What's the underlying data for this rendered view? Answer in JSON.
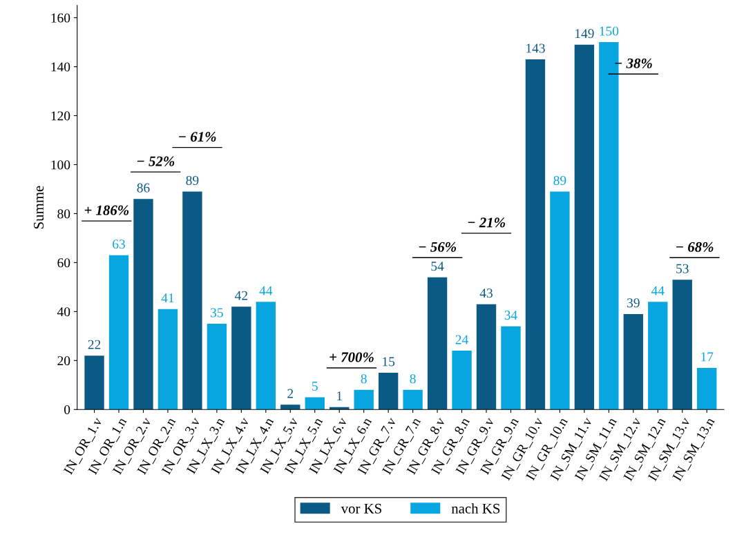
{
  "chart_data": {
    "type": "bar",
    "ylabel": "Summe",
    "categories": [
      "IN_OR_1.v",
      "IN_OR_1.n",
      "IN_OR_2.v",
      "IN_OR_2.n",
      "IN_OR_3.v",
      "IN_LX_3.n",
      "IN_LX_4.v",
      "IN_LX_4.n",
      "IN_LX_5.v",
      "IN_LX_5.n",
      "IN_LX_6.v",
      "IN_LX_6.n",
      "IN_GR_7.v",
      "IN_GR_7.n",
      "IN_GR_8.v",
      "IN_GR_8.n",
      "IN_GR_9.v",
      "IN_GR_9.n",
      "IN_GR_10.v",
      "IN_GR_10.n",
      "IN_SM_11.v",
      "IN_SM_11.n",
      "IN_SM_12.v",
      "IN_SM_12.n",
      "IN_SM_13.v",
      "IN_SM_13.n"
    ],
    "series": [
      {
        "name": "vor KS",
        "color": "#0b5a85",
        "values": [
          22,
          null,
          86,
          null,
          89,
          null,
          42,
          null,
          2,
          null,
          1,
          null,
          15,
          null,
          54,
          null,
          43,
          null,
          143,
          null,
          149,
          null,
          39,
          null,
          53,
          null
        ]
      },
      {
        "name": "nach KS",
        "color": "#08a6e0",
        "values": [
          null,
          63,
          null,
          41,
          null,
          35,
          null,
          44,
          null,
          5,
          null,
          8,
          null,
          8,
          null,
          24,
          null,
          34,
          null,
          89,
          null,
          150,
          null,
          44,
          null,
          17
        ]
      }
    ],
    "data_labels": true,
    "ylim": [
      0,
      165
    ],
    "yticks": [
      0,
      20,
      40,
      60,
      80,
      100,
      120,
      140,
      160
    ],
    "grid": false,
    "legend": "bottom",
    "annotations": [
      "+ 186%",
      "− 52%",
      "− 61%",
      "+ 700%",
      "− 56%",
      "− 21%",
      "− 38%",
      "− 68%"
    ]
  }
}
